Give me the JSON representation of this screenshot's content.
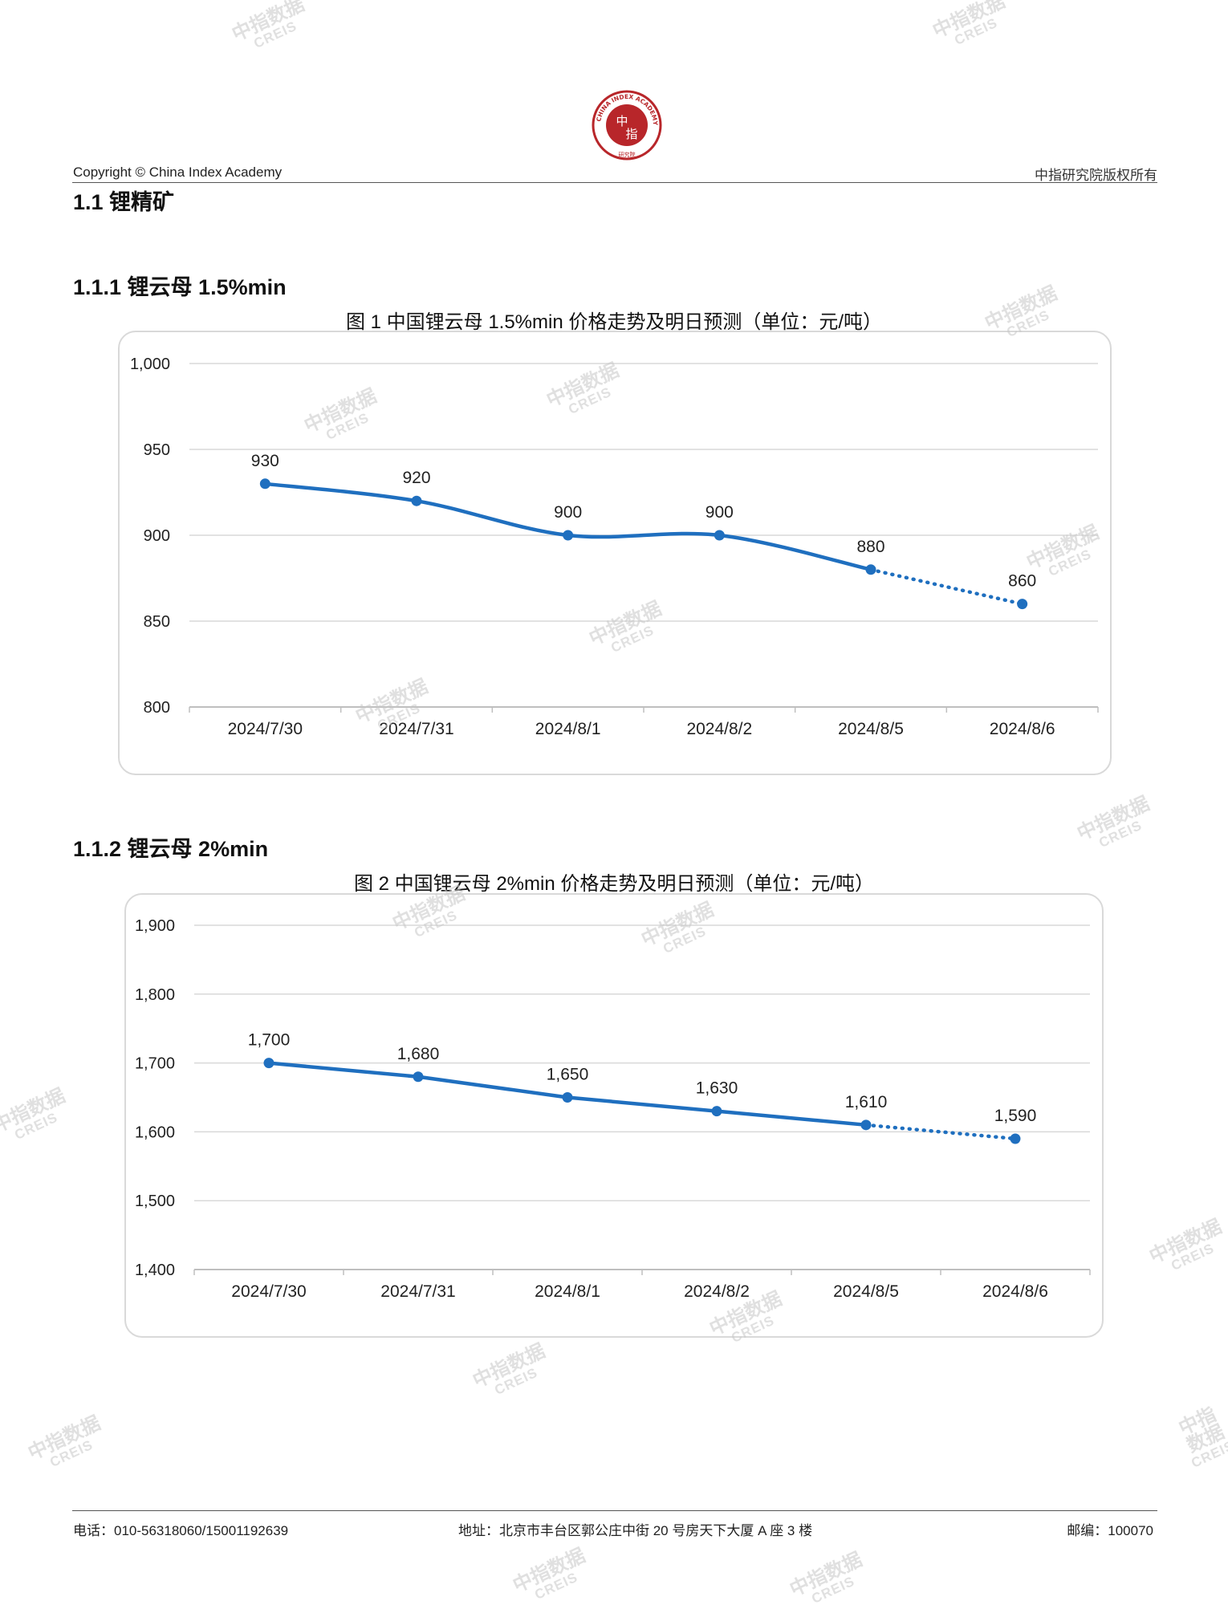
{
  "header": {
    "copyright": "Copyright © China Index Academy",
    "rights": "中指研究院版权所有",
    "logo_text": {
      "center_top": "中",
      "center_bottom": "指",
      "ring": "CHINA INDEX ACADEMY",
      "bottom": "研究院"
    }
  },
  "section": {
    "title": "1.1 锂精矿"
  },
  "charts": [
    {
      "heading": "1.1.1 锂云母 1.5%min",
      "caption": "图 1 中国锂云母 1.5%min 价格走势及明日预测（单位：元/吨）"
    },
    {
      "heading": "1.1.2 锂云母 2%min",
      "caption": "图 2 中国锂云母 2%min 价格走势及明日预测（单位：元/吨）"
    }
  ],
  "chart_data": [
    {
      "type": "line",
      "title": "图 1 中国锂云母 1.5%min 价格走势及明日预测（单位：元/吨）",
      "categories": [
        "2024/7/30",
        "2024/7/31",
        "2024/8/1",
        "2024/8/2",
        "2024/8/5",
        "2024/8/6"
      ],
      "values": [
        930,
        920,
        900,
        900,
        880,
        860
      ],
      "data_labels": [
        "930",
        "920",
        "900",
        "900",
        "880",
        "860"
      ],
      "forecast_index": 5,
      "ylim": [
        800,
        1000
      ],
      "yticks": [
        800,
        850,
        900,
        950,
        1000
      ],
      "ytick_labels": [
        "800",
        "850",
        "900",
        "950",
        "1,000"
      ],
      "grid": true,
      "color": "#1f6fbf",
      "smooth": true
    },
    {
      "type": "line",
      "title": "图 2 中国锂云母 2%min 价格走势及明日预测（单位：元/吨）",
      "categories": [
        "2024/7/30",
        "2024/7/31",
        "2024/8/1",
        "2024/8/2",
        "2024/8/5",
        "2024/8/6"
      ],
      "values": [
        1700,
        1680,
        1650,
        1630,
        1610,
        1590
      ],
      "data_labels": [
        "1,700",
        "1,680",
        "1,650",
        "1,630",
        "1,610",
        "1,590"
      ],
      "forecast_index": 5,
      "ylim": [
        1400,
        1900
      ],
      "yticks": [
        1400,
        1500,
        1600,
        1700,
        1800,
        1900
      ],
      "ytick_labels": [
        "1,400",
        "1,500",
        "1,600",
        "1,700",
        "1,800",
        "1,900"
      ],
      "grid": true,
      "color": "#1f6fbf",
      "smooth": false
    }
  ],
  "watermark": {
    "cn": "中指数据",
    "en": "CREIS"
  },
  "footer": {
    "phone": "电话：010-56318060/15001192639",
    "address": "地址：北京市丰台区郭公庄中街 20 号房天下大厦 A 座 3 楼",
    "postcode": "邮编：100070"
  }
}
